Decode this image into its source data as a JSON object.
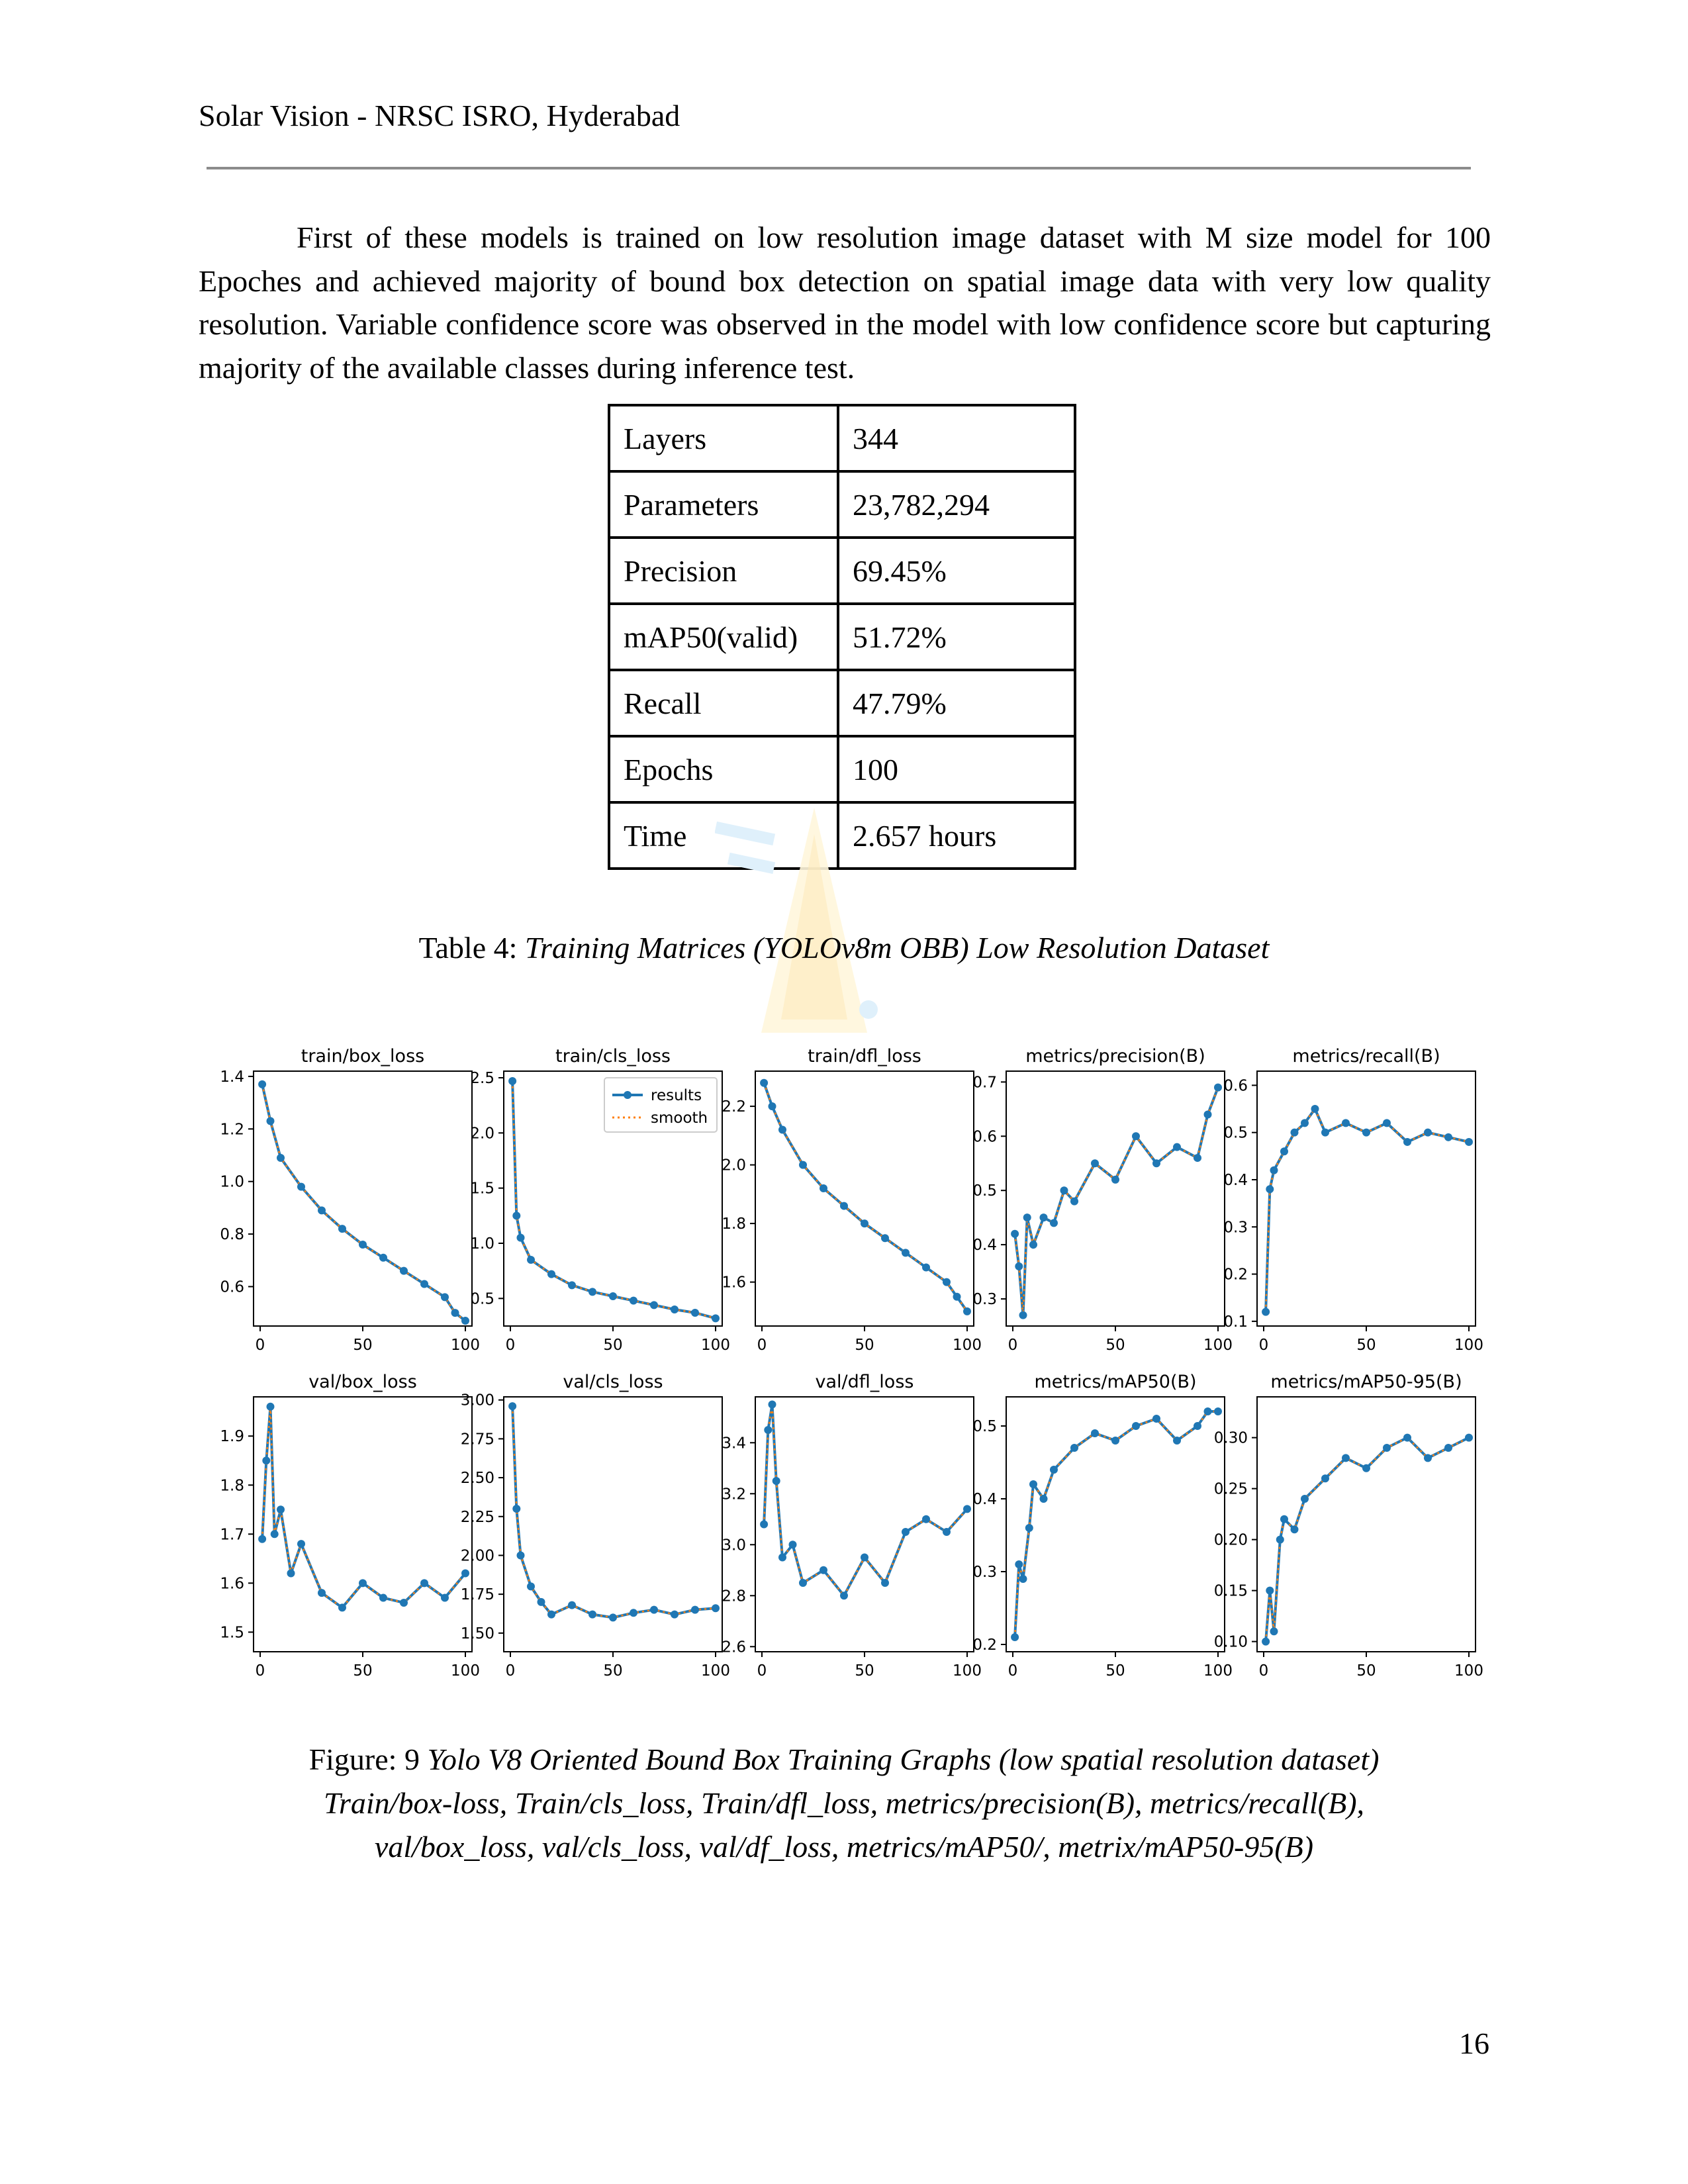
{
  "header": {
    "title": "Solar Vision - NRSC ISRO, Hyderabad"
  },
  "body": {
    "paragraph": "First of these models is trained on low resolution image dataset with M size model for 100 Epoches and achieved majority of bound box detection on spatial image data with very low quality resolution. Variable confidence score was observed in the model with low confidence score but capturing majority of the available classes during inference test."
  },
  "table": {
    "rows": [
      {
        "key": "Layers",
        "value": "344"
      },
      {
        "key": "Parameters",
        "value": "23,782,294"
      },
      {
        "key": "Precision",
        "value": "69.45%"
      },
      {
        "key": "mAP50(valid)",
        "value": "51.72%"
      },
      {
        "key": "Recall",
        "value": "47.79%"
      },
      {
        "key": "Epochs",
        "value": "100"
      },
      {
        "key": "Time",
        "value": "2.657 hours"
      }
    ],
    "caption_prefix": "Table 4: ",
    "caption_italic": "Training Matrices (YOLOv8m OBB) Low Resolution Dataset"
  },
  "figure": {
    "caption_prefix": "Figure: 9 ",
    "caption_line1": "Yolo V8 Oriented Bound Box Training Graphs (low spatial resolution dataset)",
    "caption_line2": "Train/box-loss, Train/cls_loss, Train/dfl_loss, metrics/precision(B), metrics/recall(B),",
    "caption_line3": "val/box_loss, val/cls_loss, val/df_loss, metrics/mAP50/, metrix/mAP50-95(B)"
  },
  "colors": {
    "results": "#1f77b4",
    "smooth": "#ff7f0e"
  },
  "page_number": "16",
  "chart_data": [
    {
      "type": "line",
      "title": "train/box_loss",
      "xlim": [
        0,
        100
      ],
      "ylim": [
        0.45,
        1.42
      ],
      "xticks": [
        "0",
        "50",
        "100"
      ],
      "yticks": [
        "0.6",
        "0.8",
        "1.0",
        "1.2",
        "1.4"
      ],
      "ytick_values": [
        0.6,
        0.8,
        1.0,
        1.2,
        1.4
      ],
      "series": [
        {
          "name": "results",
          "x": [
            1,
            5,
            10,
            20,
            30,
            40,
            50,
            60,
            70,
            80,
            90,
            95,
            100
          ],
          "values": [
            1.37,
            1.23,
            1.09,
            0.98,
            0.89,
            0.82,
            0.76,
            0.71,
            0.66,
            0.61,
            0.56,
            0.5,
            0.47
          ]
        }
      ],
      "legend": ""
    },
    {
      "type": "line",
      "title": "train/cls_loss",
      "xlim": [
        0,
        100
      ],
      "ylim": [
        0.25,
        2.56
      ],
      "xticks": [
        "0",
        "50",
        "100"
      ],
      "yticks": [
        "0.5",
        "1.0",
        "1.5",
        "2.0",
        "2.5"
      ],
      "ytick_values": [
        0.5,
        1.0,
        1.5,
        2.0,
        2.5
      ],
      "series": [
        {
          "name": "results",
          "x": [
            1,
            3,
            5,
            10,
            20,
            30,
            40,
            50,
            60,
            70,
            80,
            90,
            100
          ],
          "values": [
            2.47,
            1.25,
            1.05,
            0.85,
            0.72,
            0.62,
            0.56,
            0.52,
            0.48,
            0.44,
            0.4,
            0.37,
            0.32
          ]
        }
      ],
      "legend": "top-right",
      "legend_entries": [
        "results",
        "smooth"
      ]
    },
    {
      "type": "line",
      "title": "train/dfl_loss",
      "xlim": [
        0,
        100
      ],
      "ylim": [
        1.45,
        2.32
      ],
      "xticks": [
        "0",
        "50",
        "100"
      ],
      "yticks": [
        "1.6",
        "1.8",
        "2.0",
        "2.2"
      ],
      "ytick_values": [
        1.6,
        1.8,
        2.0,
        2.2
      ],
      "series": [
        {
          "name": "results",
          "x": [
            1,
            5,
            10,
            20,
            30,
            40,
            50,
            60,
            70,
            80,
            90,
            95,
            100
          ],
          "values": [
            2.28,
            2.2,
            2.12,
            2.0,
            1.92,
            1.86,
            1.8,
            1.75,
            1.7,
            1.65,
            1.6,
            1.55,
            1.5
          ]
        }
      ],
      "legend": ""
    },
    {
      "type": "line",
      "title": "metrics/precision(B)",
      "xlim": [
        0,
        100
      ],
      "ylim": [
        0.25,
        0.72
      ],
      "xticks": [
        "0",
        "50",
        "100"
      ],
      "yticks": [
        "0.3",
        "0.4",
        "0.5",
        "0.6",
        "0.7"
      ],
      "ytick_values": [
        0.3,
        0.4,
        0.5,
        0.6,
        0.7
      ],
      "series": [
        {
          "name": "results",
          "x": [
            1,
            3,
            5,
            7,
            10,
            15,
            20,
            25,
            30,
            40,
            50,
            60,
            70,
            80,
            90,
            95,
            100
          ],
          "values": [
            0.42,
            0.36,
            0.27,
            0.45,
            0.4,
            0.45,
            0.44,
            0.5,
            0.48,
            0.55,
            0.52,
            0.6,
            0.55,
            0.58,
            0.56,
            0.64,
            0.69
          ]
        }
      ],
      "legend": ""
    },
    {
      "type": "line",
      "title": "metrics/recall(B)",
      "xlim": [
        0,
        100
      ],
      "ylim": [
        0.09,
        0.63
      ],
      "xticks": [
        "0",
        "50",
        "100"
      ],
      "yticks": [
        "0.1",
        "0.2",
        "0.3",
        "0.4",
        "0.5",
        "0.6"
      ],
      "ytick_values": [
        0.1,
        0.2,
        0.3,
        0.4,
        0.5,
        0.6
      ],
      "series": [
        {
          "name": "results",
          "x": [
            1,
            3,
            5,
            10,
            15,
            20,
            25,
            30,
            40,
            50,
            60,
            70,
            80,
            90,
            100
          ],
          "values": [
            0.12,
            0.38,
            0.42,
            0.46,
            0.5,
            0.52,
            0.55,
            0.5,
            0.52,
            0.5,
            0.52,
            0.48,
            0.5,
            0.49,
            0.48
          ]
        }
      ],
      "legend": ""
    },
    {
      "type": "line",
      "title": "val/box_loss",
      "xlim": [
        0,
        100
      ],
      "ylim": [
        1.46,
        1.98
      ],
      "xticks": [
        "0",
        "50",
        "100"
      ],
      "yticks": [
        "1.5",
        "1.6",
        "1.7",
        "1.8",
        "1.9"
      ],
      "ytick_values": [
        1.5,
        1.6,
        1.7,
        1.8,
        1.9
      ],
      "series": [
        {
          "name": "results",
          "x": [
            1,
            3,
            5,
            7,
            10,
            15,
            20,
            30,
            40,
            50,
            60,
            70,
            80,
            90,
            100
          ],
          "values": [
            1.69,
            1.85,
            1.96,
            1.7,
            1.75,
            1.62,
            1.68,
            1.58,
            1.55,
            1.6,
            1.57,
            1.56,
            1.6,
            1.57,
            1.62
          ]
        }
      ],
      "legend": ""
    },
    {
      "type": "line",
      "title": "val/cls_loss",
      "xlim": [
        0,
        100
      ],
      "ylim": [
        1.38,
        3.02
      ],
      "xticks": [
        "0",
        "50",
        "100"
      ],
      "yticks": [
        "1.50",
        "1.75",
        "2.00",
        "2.25",
        "2.50",
        "2.75",
        "3.00"
      ],
      "ytick_values": [
        1.5,
        1.75,
        2.0,
        2.25,
        2.5,
        2.75,
        3.0
      ],
      "series": [
        {
          "name": "results",
          "x": [
            1,
            3,
            5,
            10,
            15,
            20,
            30,
            40,
            50,
            60,
            70,
            80,
            90,
            100
          ],
          "values": [
            2.96,
            2.3,
            2.0,
            1.8,
            1.7,
            1.62,
            1.68,
            1.62,
            1.6,
            1.63,
            1.65,
            1.62,
            1.65,
            1.66
          ]
        }
      ],
      "legend": ""
    },
    {
      "type": "line",
      "title": "val/dfl_loss",
      "xlim": [
        0,
        100
      ],
      "ylim": [
        2.58,
        3.58
      ],
      "xticks": [
        "0",
        "50",
        "100"
      ],
      "yticks": [
        "2.6",
        "2.8",
        "3.0",
        "3.2",
        "3.4"
      ],
      "ytick_values": [
        2.6,
        2.8,
        3.0,
        3.2,
        3.4
      ],
      "series": [
        {
          "name": "results",
          "x": [
            1,
            3,
            5,
            7,
            10,
            15,
            20,
            30,
            40,
            50,
            60,
            70,
            80,
            90,
            100
          ],
          "values": [
            3.08,
            3.45,
            3.55,
            3.25,
            2.95,
            3.0,
            2.85,
            2.9,
            2.8,
            2.95,
            2.85,
            3.05,
            3.1,
            3.05,
            3.14
          ]
        }
      ],
      "legend": ""
    },
    {
      "type": "line",
      "title": "metrics/mAP50(B)",
      "xlim": [
        0,
        100
      ],
      "ylim": [
        0.19,
        0.54
      ],
      "xticks": [
        "0",
        "50",
        "100"
      ],
      "yticks": [
        "0.2",
        "0.3",
        "0.4",
        "0.5"
      ],
      "ytick_values": [
        0.2,
        0.3,
        0.4,
        0.5
      ],
      "series": [
        {
          "name": "results",
          "x": [
            1,
            3,
            5,
            8,
            10,
            15,
            20,
            30,
            40,
            50,
            60,
            70,
            80,
            90,
            95,
            100
          ],
          "values": [
            0.21,
            0.31,
            0.29,
            0.36,
            0.42,
            0.4,
            0.44,
            0.47,
            0.49,
            0.48,
            0.5,
            0.51,
            0.48,
            0.5,
            0.52,
            0.52
          ]
        }
      ],
      "legend": ""
    },
    {
      "type": "line",
      "title": "metrics/mAP50-95(B)",
      "xlim": [
        0,
        100
      ],
      "ylim": [
        0.09,
        0.34
      ],
      "xticks": [
        "0",
        "50",
        "100"
      ],
      "yticks": [
        "0.10",
        "0.15",
        "0.20",
        "0.25",
        "0.30"
      ],
      "ytick_values": [
        0.1,
        0.15,
        0.2,
        0.25,
        0.3
      ],
      "series": [
        {
          "name": "results",
          "x": [
            1,
            3,
            5,
            8,
            10,
            15,
            20,
            30,
            40,
            50,
            60,
            70,
            80,
            90,
            100
          ],
          "values": [
            0.1,
            0.15,
            0.11,
            0.2,
            0.22,
            0.21,
            0.24,
            0.26,
            0.28,
            0.27,
            0.29,
            0.3,
            0.28,
            0.29,
            0.3
          ]
        }
      ],
      "legend": ""
    }
  ]
}
